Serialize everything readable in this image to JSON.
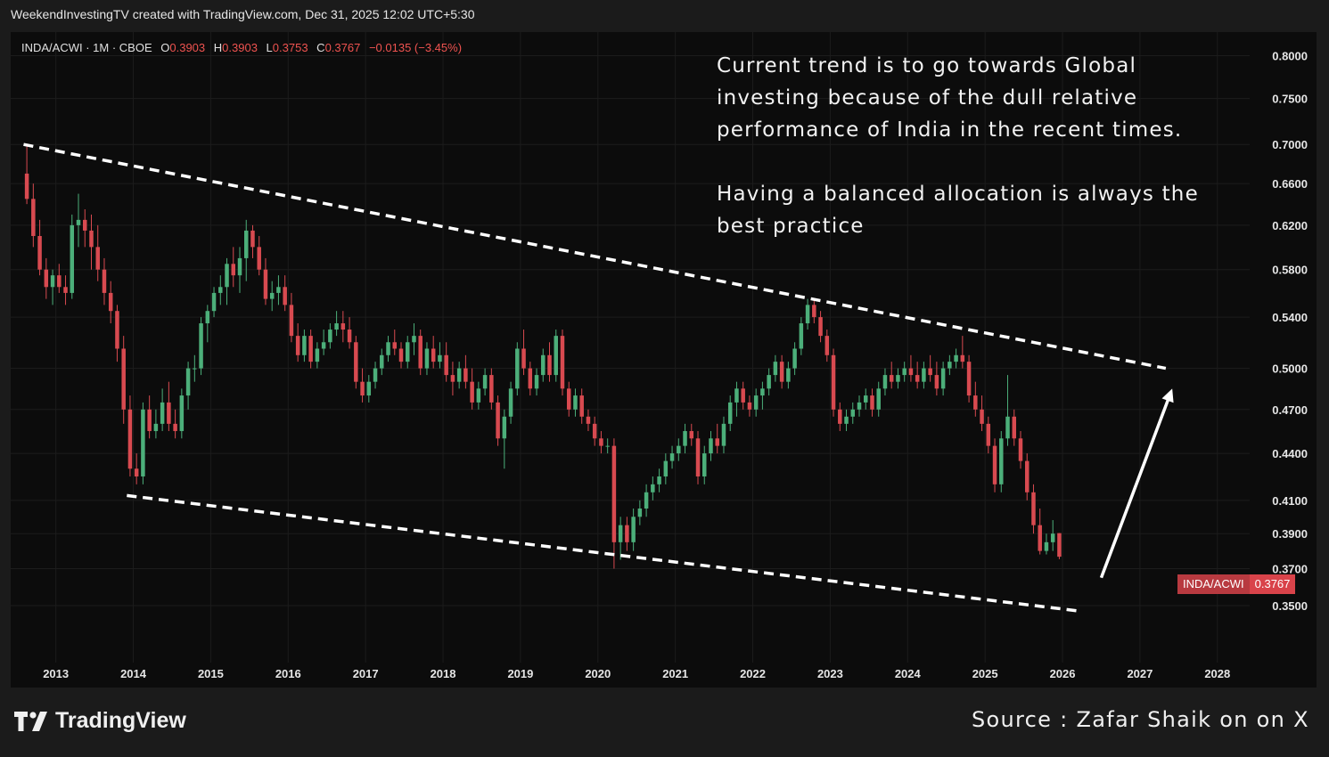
{
  "header": {
    "text": "WeekendInvestingTV created with TradingView.com, Dec 31, 2025 12:02 UTC+5:30"
  },
  "legend": {
    "symbol": "INDA/ACWI · 1M · CBOE",
    "open_key": "O",
    "open": "0.3903",
    "high_key": "H",
    "high": "0.3903",
    "low_key": "L",
    "low": "0.3753",
    "close_key": "C",
    "close": "0.3767",
    "change": "−0.0135 (−3.45%)"
  },
  "annotation": {
    "line1": "Current trend is to go towards Global investing because of the dull relative performance of India in the recent times.",
    "line2": "Having a balanced allocation is always the best practice"
  },
  "price_tag": {
    "symbol": "INDA/ACWI",
    "value": "0.3767"
  },
  "footer": {
    "brand": "TradingView",
    "source": "Source : Zafar Shaik on on X"
  },
  "colors": {
    "up": "#4caf7a",
    "down": "#d84a50",
    "background": "#0c0c0c",
    "frame": "#1b1b1b",
    "trendline": "#ffffff"
  },
  "chart_data": {
    "type": "candlestick",
    "interval": "1M",
    "x_range": [
      "2012-06",
      "2028-06"
    ],
    "y_scale": "log",
    "y_range": [
      0.33,
      0.82
    ],
    "y_ticks": [
      "0.8000",
      "0.7500",
      "0.7000",
      "0.6600",
      "0.6200",
      "0.5800",
      "0.5400",
      "0.5000",
      "0.4700",
      "0.4400",
      "0.4100",
      "0.3900",
      "0.3700",
      "0.3500"
    ],
    "x_ticks": [
      "2013",
      "2014",
      "2015",
      "2016",
      "2017",
      "2018",
      "2019",
      "2020",
      "2021",
      "2022",
      "2023",
      "2024",
      "2025",
      "2026",
      "2027",
      "2028"
    ],
    "candles": [
      [
        "2012-08",
        0.67,
        0.7,
        0.64,
        0.645
      ],
      [
        "2012-09",
        0.645,
        0.66,
        0.6,
        0.61
      ],
      [
        "2012-10",
        0.61,
        0.625,
        0.575,
        0.58
      ],
      [
        "2012-11",
        0.58,
        0.59,
        0.555,
        0.565
      ],
      [
        "2012-12",
        0.565,
        0.58,
        0.55,
        0.575
      ],
      [
        "2013-01",
        0.575,
        0.585,
        0.56,
        0.565
      ],
      [
        "2013-02",
        0.565,
        0.575,
        0.55,
        0.56
      ],
      [
        "2013-03",
        0.56,
        0.63,
        0.555,
        0.62
      ],
      [
        "2013-04",
        0.62,
        0.65,
        0.6,
        0.625
      ],
      [
        "2013-05",
        0.625,
        0.635,
        0.6,
        0.615
      ],
      [
        "2013-06",
        0.615,
        0.63,
        0.58,
        0.6
      ],
      [
        "2013-07",
        0.6,
        0.62,
        0.57,
        0.58
      ],
      [
        "2013-08",
        0.58,
        0.59,
        0.55,
        0.56
      ],
      [
        "2013-09",
        0.56,
        0.57,
        0.535,
        0.545
      ],
      [
        "2013-10",
        0.545,
        0.55,
        0.505,
        0.515
      ],
      [
        "2013-11",
        0.515,
        0.525,
        0.46,
        0.47
      ],
      [
        "2013-12",
        0.47,
        0.48,
        0.425,
        0.43
      ],
      [
        "2014-01",
        0.43,
        0.44,
        0.42,
        0.425
      ],
      [
        "2014-02",
        0.425,
        0.475,
        0.42,
        0.47
      ],
      [
        "2014-03",
        0.47,
        0.48,
        0.45,
        0.455
      ],
      [
        "2014-04",
        0.455,
        0.47,
        0.45,
        0.46
      ],
      [
        "2014-05",
        0.46,
        0.485,
        0.455,
        0.475
      ],
      [
        "2014-06",
        0.475,
        0.49,
        0.455,
        0.46
      ],
      [
        "2014-07",
        0.46,
        0.47,
        0.45,
        0.455
      ],
      [
        "2014-08",
        0.455,
        0.485,
        0.45,
        0.48
      ],
      [
        "2014-09",
        0.48,
        0.505,
        0.47,
        0.5
      ],
      [
        "2014-10",
        0.5,
        0.51,
        0.49,
        0.5
      ],
      [
        "2014-11",
        0.5,
        0.54,
        0.495,
        0.535
      ],
      [
        "2014-12",
        0.535,
        0.55,
        0.52,
        0.545
      ],
      [
        "2015-01",
        0.545,
        0.565,
        0.54,
        0.56
      ],
      [
        "2015-02",
        0.56,
        0.575,
        0.55,
        0.565
      ],
      [
        "2015-03",
        0.565,
        0.59,
        0.55,
        0.585
      ],
      [
        "2015-04",
        0.585,
        0.6,
        0.565,
        0.575
      ],
      [
        "2015-05",
        0.575,
        0.6,
        0.56,
        0.59
      ],
      [
        "2015-06",
        0.59,
        0.625,
        0.57,
        0.615
      ],
      [
        "2015-07",
        0.615,
        0.62,
        0.59,
        0.6
      ],
      [
        "2015-08",
        0.6,
        0.61,
        0.575,
        0.58
      ],
      [
        "2015-09",
        0.58,
        0.59,
        0.55,
        0.555
      ],
      [
        "2015-10",
        0.555,
        0.57,
        0.545,
        0.56
      ],
      [
        "2015-11",
        0.56,
        0.575,
        0.55,
        0.565
      ],
      [
        "2015-12",
        0.565,
        0.575,
        0.545,
        0.55
      ],
      [
        "2016-01",
        0.55,
        0.56,
        0.52,
        0.525
      ],
      [
        "2016-02",
        0.525,
        0.535,
        0.505,
        0.51
      ],
      [
        "2016-03",
        0.51,
        0.53,
        0.505,
        0.525
      ],
      [
        "2016-04",
        0.525,
        0.53,
        0.5,
        0.505
      ],
      [
        "2016-05",
        0.505,
        0.52,
        0.5,
        0.515
      ],
      [
        "2016-06",
        0.515,
        0.53,
        0.51,
        0.52
      ],
      [
        "2016-07",
        0.52,
        0.535,
        0.515,
        0.53
      ],
      [
        "2016-08",
        0.53,
        0.545,
        0.525,
        0.535
      ],
      [
        "2016-09",
        0.535,
        0.545,
        0.52,
        0.53
      ],
      [
        "2016-10",
        0.53,
        0.54,
        0.515,
        0.52
      ],
      [
        "2016-11",
        0.52,
        0.525,
        0.485,
        0.49
      ],
      [
        "2016-12",
        0.49,
        0.5,
        0.475,
        0.48
      ],
      [
        "2017-01",
        0.48,
        0.495,
        0.475,
        0.49
      ],
      [
        "2017-02",
        0.49,
        0.505,
        0.485,
        0.5
      ],
      [
        "2017-03",
        0.5,
        0.515,
        0.495,
        0.51
      ],
      [
        "2017-04",
        0.51,
        0.525,
        0.505,
        0.52
      ],
      [
        "2017-05",
        0.52,
        0.53,
        0.51,
        0.515
      ],
      [
        "2017-06",
        0.515,
        0.52,
        0.5,
        0.505
      ],
      [
        "2017-07",
        0.505,
        0.525,
        0.5,
        0.52
      ],
      [
        "2017-08",
        0.52,
        0.535,
        0.51,
        0.525
      ],
      [
        "2017-09",
        0.525,
        0.53,
        0.495,
        0.5
      ],
      [
        "2017-10",
        0.5,
        0.52,
        0.495,
        0.515
      ],
      [
        "2017-11",
        0.515,
        0.525,
        0.5,
        0.505
      ],
      [
        "2017-12",
        0.505,
        0.52,
        0.5,
        0.51
      ],
      [
        "2018-01",
        0.51,
        0.52,
        0.49,
        0.495
      ],
      [
        "2018-02",
        0.495,
        0.505,
        0.48,
        0.49
      ],
      [
        "2018-03",
        0.49,
        0.505,
        0.485,
        0.5
      ],
      [
        "2018-04",
        0.5,
        0.51,
        0.485,
        0.49
      ],
      [
        "2018-05",
        0.49,
        0.5,
        0.47,
        0.475
      ],
      [
        "2018-06",
        0.475,
        0.49,
        0.47,
        0.485
      ],
      [
        "2018-07",
        0.485,
        0.5,
        0.48,
        0.495
      ],
      [
        "2018-08",
        0.495,
        0.5,
        0.47,
        0.475
      ],
      [
        "2018-09",
        0.475,
        0.48,
        0.445,
        0.45
      ],
      [
        "2018-10",
        0.45,
        0.47,
        0.43,
        0.465
      ],
      [
        "2018-11",
        0.465,
        0.49,
        0.46,
        0.485
      ],
      [
        "2018-12",
        0.485,
        0.52,
        0.48,
        0.515
      ],
      [
        "2019-01",
        0.515,
        0.53,
        0.495,
        0.5
      ],
      [
        "2019-02",
        0.5,
        0.505,
        0.48,
        0.485
      ],
      [
        "2019-03",
        0.485,
        0.5,
        0.48,
        0.495
      ],
      [
        "2019-04",
        0.495,
        0.515,
        0.49,
        0.51
      ],
      [
        "2019-05",
        0.51,
        0.52,
        0.49,
        0.495
      ],
      [
        "2019-06",
        0.495,
        0.53,
        0.49,
        0.525
      ],
      [
        "2019-07",
        0.525,
        0.53,
        0.48,
        0.485
      ],
      [
        "2019-08",
        0.485,
        0.49,
        0.465,
        0.47
      ],
      [
        "2019-09",
        0.47,
        0.485,
        0.465,
        0.48
      ],
      [
        "2019-10",
        0.48,
        0.485,
        0.46,
        0.465
      ],
      [
        "2019-11",
        0.465,
        0.47,
        0.455,
        0.46
      ],
      [
        "2019-12",
        0.46,
        0.465,
        0.445,
        0.45
      ],
      [
        "2020-01",
        0.45,
        0.455,
        0.44,
        0.445
      ],
      [
        "2020-02",
        0.445,
        0.45,
        0.44,
        0.445
      ],
      [
        "2020-03",
        0.445,
        0.45,
        0.37,
        0.385
      ],
      [
        "2020-04",
        0.385,
        0.4,
        0.375,
        0.395
      ],
      [
        "2020-05",
        0.395,
        0.4,
        0.38,
        0.385
      ],
      [
        "2020-06",
        0.385,
        0.405,
        0.38,
        0.4
      ],
      [
        "2020-07",
        0.4,
        0.41,
        0.395,
        0.405
      ],
      [
        "2020-08",
        0.405,
        0.42,
        0.4,
        0.415
      ],
      [
        "2020-09",
        0.415,
        0.425,
        0.41,
        0.42
      ],
      [
        "2020-10",
        0.42,
        0.43,
        0.415,
        0.425
      ],
      [
        "2020-11",
        0.425,
        0.44,
        0.42,
        0.435
      ],
      [
        "2020-12",
        0.435,
        0.445,
        0.43,
        0.44
      ],
      [
        "2021-01",
        0.44,
        0.45,
        0.435,
        0.445
      ],
      [
        "2021-02",
        0.445,
        0.46,
        0.44,
        0.455
      ],
      [
        "2021-03",
        0.455,
        0.46,
        0.445,
        0.45
      ],
      [
        "2021-04",
        0.45,
        0.455,
        0.42,
        0.425
      ],
      [
        "2021-05",
        0.425,
        0.445,
        0.42,
        0.44
      ],
      [
        "2021-06",
        0.44,
        0.455,
        0.435,
        0.45
      ],
      [
        "2021-07",
        0.45,
        0.46,
        0.44,
        0.445
      ],
      [
        "2021-08",
        0.445,
        0.465,
        0.44,
        0.46
      ],
      [
        "2021-09",
        0.46,
        0.48,
        0.455,
        0.475
      ],
      [
        "2021-10",
        0.475,
        0.49,
        0.465,
        0.485
      ],
      [
        "2021-11",
        0.485,
        0.49,
        0.47,
        0.475
      ],
      [
        "2021-12",
        0.475,
        0.48,
        0.465,
        0.47
      ],
      [
        "2022-01",
        0.47,
        0.485,
        0.465,
        0.48
      ],
      [
        "2022-02",
        0.48,
        0.49,
        0.47,
        0.485
      ],
      [
        "2022-03",
        0.485,
        0.5,
        0.48,
        0.495
      ],
      [
        "2022-04",
        0.495,
        0.51,
        0.49,
        0.505
      ],
      [
        "2022-05",
        0.505,
        0.51,
        0.485,
        0.49
      ],
      [
        "2022-06",
        0.49,
        0.505,
        0.485,
        0.5
      ],
      [
        "2022-07",
        0.5,
        0.52,
        0.495,
        0.515
      ],
      [
        "2022-08",
        0.515,
        0.54,
        0.51,
        0.535
      ],
      [
        "2022-09",
        0.535,
        0.555,
        0.53,
        0.55
      ],
      [
        "2022-10",
        0.55,
        0.555,
        0.535,
        0.54
      ],
      [
        "2022-11",
        0.54,
        0.545,
        0.52,
        0.525
      ],
      [
        "2022-12",
        0.525,
        0.53,
        0.505,
        0.51
      ],
      [
        "2023-01",
        0.51,
        0.515,
        0.465,
        0.47
      ],
      [
        "2023-02",
        0.47,
        0.475,
        0.455,
        0.46
      ],
      [
        "2023-03",
        0.46,
        0.47,
        0.455,
        0.465
      ],
      [
        "2023-04",
        0.465,
        0.475,
        0.46,
        0.47
      ],
      [
        "2023-05",
        0.47,
        0.48,
        0.465,
        0.475
      ],
      [
        "2023-06",
        0.475,
        0.485,
        0.47,
        0.48
      ],
      [
        "2023-07",
        0.48,
        0.485,
        0.465,
        0.47
      ],
      [
        "2023-08",
        0.47,
        0.49,
        0.465,
        0.485
      ],
      [
        "2023-09",
        0.485,
        0.5,
        0.48,
        0.495
      ],
      [
        "2023-10",
        0.495,
        0.505,
        0.485,
        0.49
      ],
      [
        "2023-11",
        0.49,
        0.5,
        0.485,
        0.495
      ],
      [
        "2023-12",
        0.495,
        0.505,
        0.49,
        0.5
      ],
      [
        "2024-01",
        0.5,
        0.51,
        0.49,
        0.495
      ],
      [
        "2024-02",
        0.495,
        0.505,
        0.485,
        0.49
      ],
      [
        "2024-03",
        0.49,
        0.505,
        0.485,
        0.5
      ],
      [
        "2024-04",
        0.5,
        0.51,
        0.49,
        0.495
      ],
      [
        "2024-05",
        0.495,
        0.505,
        0.48,
        0.485
      ],
      [
        "2024-06",
        0.485,
        0.505,
        0.48,
        0.5
      ],
      [
        "2024-07",
        0.5,
        0.51,
        0.495,
        0.505
      ],
      [
        "2024-08",
        0.505,
        0.515,
        0.5,
        0.51
      ],
      [
        "2024-09",
        0.51,
        0.525,
        0.5,
        0.505
      ],
      [
        "2024-10",
        0.505,
        0.51,
        0.475,
        0.48
      ],
      [
        "2024-11",
        0.48,
        0.49,
        0.465,
        0.47
      ],
      [
        "2024-12",
        0.47,
        0.48,
        0.455,
        0.46
      ],
      [
        "2025-01",
        0.46,
        0.465,
        0.44,
        0.445
      ],
      [
        "2025-02",
        0.445,
        0.45,
        0.415,
        0.42
      ],
      [
        "2025-03",
        0.42,
        0.455,
        0.415,
        0.45
      ],
      [
        "2025-04",
        0.45,
        0.495,
        0.445,
        0.465
      ],
      [
        "2025-05",
        0.465,
        0.47,
        0.445,
        0.45
      ],
      [
        "2025-06",
        0.45,
        0.455,
        0.43,
        0.435
      ],
      [
        "2025-07",
        0.435,
        0.44,
        0.41,
        0.415
      ],
      [
        "2025-08",
        0.415,
        0.42,
        0.39,
        0.395
      ],
      [
        "2025-09",
        0.395,
        0.405,
        0.378,
        0.38
      ],
      [
        "2025-10",
        0.38,
        0.39,
        0.378,
        0.385
      ],
      [
        "2025-11",
        0.385,
        0.398,
        0.38,
        0.39
      ],
      [
        "2025-12",
        0.3903,
        0.3903,
        0.3753,
        0.3767
      ]
    ],
    "trendlines": [
      {
        "name": "upper",
        "from": [
          "2012-08",
          0.7
        ],
        "to": [
          "2027-05",
          0.5
        ],
        "style": "dashed"
      },
      {
        "name": "lower",
        "from": [
          "2013-12",
          0.413
        ],
        "to": [
          "2026-04",
          0.347
        ],
        "style": "dashed"
      }
    ],
    "arrow": {
      "from": [
        "2026-07",
        0.365
      ],
      "to": [
        "2027-06",
        0.485
      ]
    },
    "grid": true
  }
}
